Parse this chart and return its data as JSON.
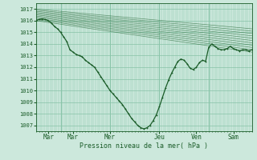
{
  "xlabel": "Pression niveau de la mer( hPa )",
  "bg_color": "#cce8dc",
  "grid_color": "#88c4a8",
  "line_color": "#1a5c28",
  "tick_color": "#1a5c28",
  "ylim": [
    1006.5,
    1017.5
  ],
  "yticks": [
    1007,
    1008,
    1009,
    1010,
    1011,
    1012,
    1013,
    1014,
    1015,
    1016,
    1017
  ],
  "xlim": [
    0,
    210
  ],
  "xtick_positions": [
    12,
    36,
    72,
    120,
    156,
    192
  ],
  "xtick_labels": [
    "Mar",
    "Mar",
    "Mer",
    "Jeu",
    "Ven",
    "Sam"
  ],
  "day_lines": [
    24,
    72,
    120,
    168
  ],
  "ensemble_starts": [
    [
      0,
      1016.0
    ],
    [
      0,
      1016.1
    ],
    [
      0,
      1016.2
    ],
    [
      0,
      1016.3
    ],
    [
      0,
      1016.4
    ],
    [
      0,
      1016.5
    ],
    [
      0,
      1016.6
    ],
    [
      0,
      1016.7
    ],
    [
      0,
      1016.8
    ],
    [
      0,
      1016.9
    ],
    [
      0,
      1017.0
    ]
  ],
  "ensemble_ends": [
    [
      210,
      1013.3
    ],
    [
      210,
      1013.5
    ],
    [
      210,
      1013.7
    ],
    [
      210,
      1013.9
    ],
    [
      210,
      1014.1
    ],
    [
      210,
      1014.3
    ],
    [
      210,
      1014.5
    ],
    [
      210,
      1014.7
    ],
    [
      210,
      1014.9
    ],
    [
      210,
      1015.1
    ],
    [
      210,
      1015.3
    ]
  ],
  "main_line": [
    [
      0,
      1016.0
    ],
    [
      3,
      1016.1
    ],
    [
      6,
      1016.15
    ],
    [
      9,
      1016.1
    ],
    [
      12,
      1016.0
    ],
    [
      15,
      1015.8
    ],
    [
      18,
      1015.5
    ],
    [
      21,
      1015.3
    ],
    [
      24,
      1015.0
    ],
    [
      27,
      1014.6
    ],
    [
      30,
      1014.2
    ],
    [
      33,
      1013.5
    ],
    [
      36,
      1013.3
    ],
    [
      39,
      1013.1
    ],
    [
      42,
      1013.0
    ],
    [
      45,
      1012.9
    ],
    [
      48,
      1012.6
    ],
    [
      51,
      1012.4
    ],
    [
      54,
      1012.2
    ],
    [
      57,
      1012.0
    ],
    [
      60,
      1011.6
    ],
    [
      63,
      1011.2
    ],
    [
      66,
      1010.8
    ],
    [
      69,
      1010.4
    ],
    [
      72,
      1010.0
    ],
    [
      75,
      1009.7
    ],
    [
      78,
      1009.4
    ],
    [
      81,
      1009.1
    ],
    [
      84,
      1008.8
    ],
    [
      87,
      1008.4
    ],
    [
      90,
      1008.0
    ],
    [
      93,
      1007.6
    ],
    [
      96,
      1007.3
    ],
    [
      99,
      1007.0
    ],
    [
      102,
      1006.8
    ],
    [
      105,
      1006.7
    ],
    [
      108,
      1006.8
    ],
    [
      111,
      1007.0
    ],
    [
      114,
      1007.4
    ],
    [
      117,
      1007.9
    ],
    [
      120,
      1008.6
    ],
    [
      123,
      1009.4
    ],
    [
      126,
      1010.2
    ],
    [
      129,
      1010.9
    ],
    [
      132,
      1011.5
    ],
    [
      135,
      1012.0
    ],
    [
      138,
      1012.5
    ],
    [
      141,
      1012.7
    ],
    [
      144,
      1012.6
    ],
    [
      147,
      1012.3
    ],
    [
      150,
      1011.9
    ],
    [
      153,
      1011.8
    ],
    [
      156,
      1012.0
    ],
    [
      159,
      1012.4
    ],
    [
      162,
      1012.6
    ],
    [
      165,
      1012.5
    ],
    [
      168,
      1013.7
    ],
    [
      171,
      1014.0
    ],
    [
      174,
      1013.8
    ],
    [
      177,
      1013.6
    ],
    [
      180,
      1013.5
    ],
    [
      183,
      1013.5
    ],
    [
      186,
      1013.6
    ],
    [
      189,
      1013.8
    ],
    [
      192,
      1013.6
    ],
    [
      195,
      1013.5
    ],
    [
      198,
      1013.4
    ],
    [
      201,
      1013.5
    ],
    [
      204,
      1013.5
    ],
    [
      207,
      1013.4
    ],
    [
      210,
      1013.5
    ]
  ]
}
